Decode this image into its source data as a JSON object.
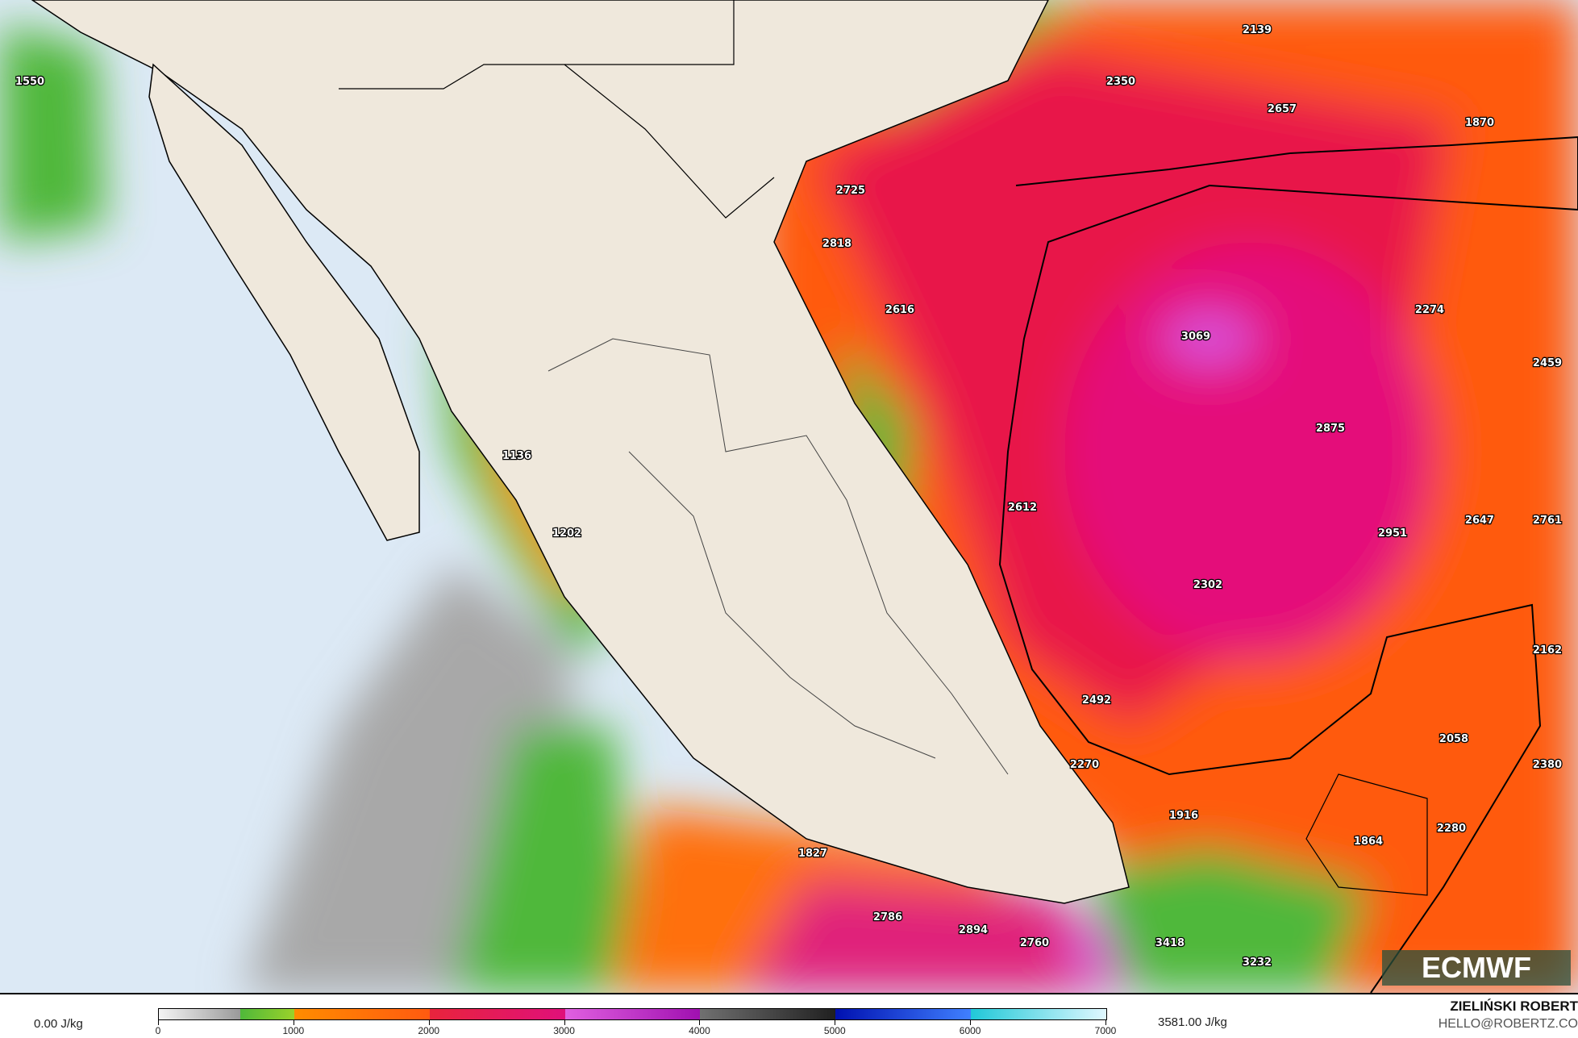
{
  "map": {
    "colors": {
      "ocean": "#dce9f5",
      "land": "#efe8dc",
      "border": "#000000"
    },
    "value_labels": [
      {
        "v": "1550",
        "lon_lat_hint": "pacific-nw"
      },
      {
        "v": "2139"
      },
      {
        "v": "2350"
      },
      {
        "v": "2657"
      },
      {
        "v": "1870"
      },
      {
        "v": "2725"
      },
      {
        "v": "2818"
      },
      {
        "v": "2616"
      },
      {
        "v": "3069"
      },
      {
        "v": "2274"
      },
      {
        "v": "2459"
      },
      {
        "v": "2875"
      },
      {
        "v": "1136"
      },
      {
        "v": "2612"
      },
      {
        "v": "2951"
      },
      {
        "v": "2647"
      },
      {
        "v": "2761"
      },
      {
        "v": "1202"
      },
      {
        "v": "2302"
      },
      {
        "v": "2162"
      },
      {
        "v": "2492"
      },
      {
        "v": "2058"
      },
      {
        "v": "2380"
      },
      {
        "v": "2270"
      },
      {
        "v": "1916"
      },
      {
        "v": "2280"
      },
      {
        "v": "1864"
      },
      {
        "v": "1827"
      },
      {
        "v": "2786"
      },
      {
        "v": "2894"
      },
      {
        "v": "2760"
      },
      {
        "v": "3418"
      },
      {
        "v": "3232"
      }
    ]
  },
  "logo": "ECMWF",
  "legend": {
    "min_label": "0.00 J/kg",
    "max_label": "3581.00 J/kg",
    "ticks": [
      "0",
      "1000",
      "2000",
      "3000",
      "4000",
      "5000",
      "6000",
      "7000"
    ],
    "range": [
      0,
      7000
    ],
    "gradient": [
      "#f4f4f4,#9a9a9a 60%,#4fb83a 60%,#9ad22a",
      "#ff8c00,#ff5a10",
      "#e8243c,#e0107a",
      "#e060e0,#a010b0",
      "#707070,#202020",
      "#0010b0,#4080ff",
      "#20c8d8,#e0f8ff"
    ]
  },
  "credit": {
    "author": "ZIELIŃSKI ROBERT",
    "email": "HELLO@ROBERTZ.CO"
  }
}
